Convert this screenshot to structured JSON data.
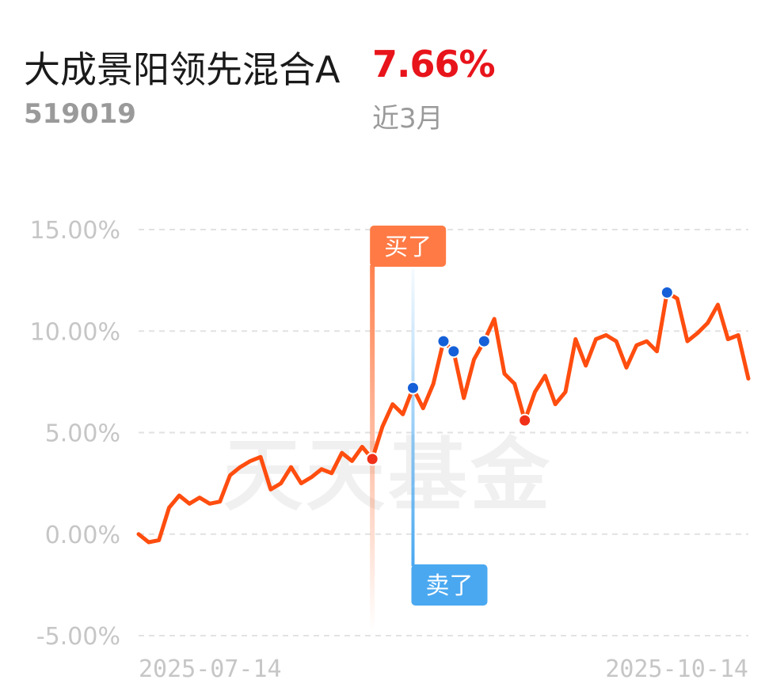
{
  "fund": {
    "name": "大成景阳领先混合A",
    "return_text": "7.66%",
    "code": "519019",
    "period": "近3月"
  },
  "watermark": "天天基金",
  "colors": {
    "line": "#ff4d0f",
    "buy": "#ff7a45",
    "sell": "#4aa8f0",
    "buy_point": "#f03018",
    "sell_point": "#1560d8",
    "grid": "#e2e2e2"
  },
  "chart_data": {
    "type": "line",
    "title": "",
    "xlabel": "",
    "ylabel": "",
    "ylim": [
      -5,
      15
    ],
    "y_ticks": [
      15,
      10,
      5,
      0,
      -5
    ],
    "y_tick_labels": [
      "15.00%",
      "10.00%",
      "5.00%",
      "0.00%",
      "-5.00%"
    ],
    "x_tick_labels": [
      "2025-07-14",
      "2025-10-14"
    ],
    "grid": true,
    "series": [
      {
        "values": [
          0.0,
          -0.4,
          -0.3,
          1.3,
          1.9,
          1.5,
          1.8,
          1.5,
          1.6,
          2.9,
          3.3,
          3.6,
          3.8,
          2.2,
          2.5,
          3.3,
          2.5,
          2.8,
          3.2,
          3.0,
          4.0,
          3.6,
          4.3,
          3.7,
          5.3,
          6.4,
          5.9,
          7.2,
          6.2,
          7.4,
          9.5,
          9.0,
          6.7,
          8.6,
          9.5,
          10.6,
          7.9,
          7.4,
          5.6,
          7.0,
          7.8,
          6.4,
          7.0,
          9.6,
          8.3,
          9.6,
          9.8,
          9.5,
          8.2,
          9.3,
          9.5,
          9.0,
          11.9,
          11.6,
          9.5,
          9.9,
          10.4,
          11.3,
          9.6,
          9.8,
          7.66
        ]
      }
    ],
    "trade_markers": [
      {
        "type": "buy",
        "label": "买了",
        "index": 23,
        "value": 3.7
      },
      {
        "type": "sell",
        "label": "卖了",
        "index": 27,
        "value": 7.2
      },
      {
        "type": "sell_point",
        "index": 30,
        "value": 9.5
      },
      {
        "type": "sell_point",
        "index": 31,
        "value": 9.0
      },
      {
        "type": "sell_point",
        "index": 34,
        "value": 9.5
      },
      {
        "type": "buy_point",
        "index": 38,
        "value": 5.6
      },
      {
        "type": "sell_point",
        "index": 52,
        "value": 11.9
      }
    ]
  }
}
